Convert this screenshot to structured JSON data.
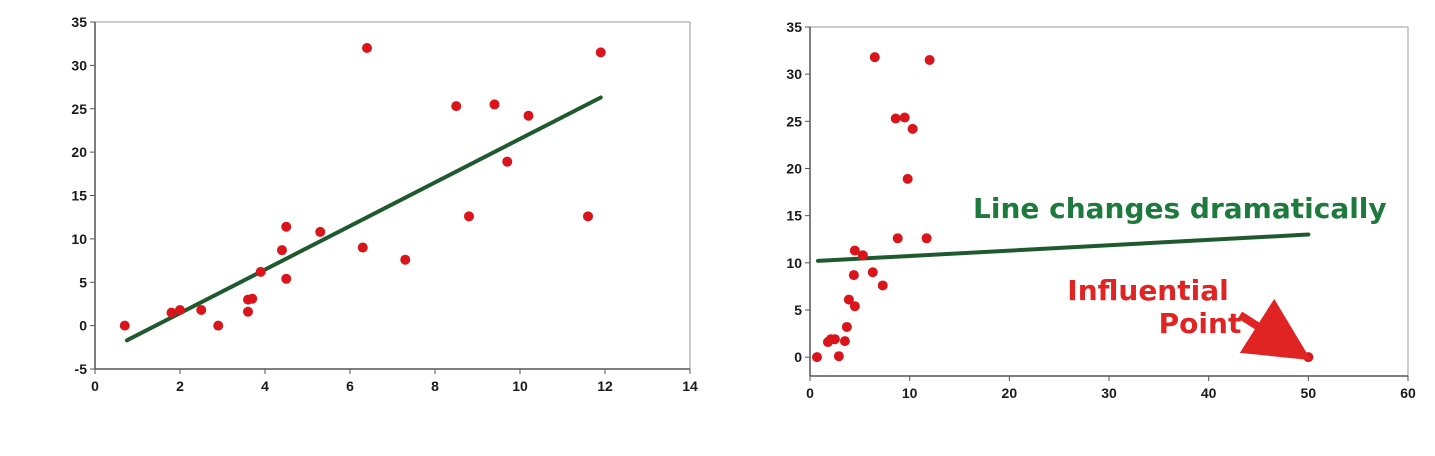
{
  "colors": {
    "point": "#d9141b",
    "line": "#1f5a2e",
    "axis": "#555555",
    "green_text": "#1e7a3c",
    "red_text": "#e02424"
  },
  "chart_data": [
    {
      "type": "scatter",
      "title": "",
      "xlabel": "",
      "ylabel": "",
      "xlim": [
        0,
        14
      ],
      "ylim": [
        -5,
        35
      ],
      "xticks": [
        0,
        2,
        4,
        6,
        8,
        10,
        12,
        14
      ],
      "yticks": [
        -5,
        0,
        5,
        10,
        15,
        20,
        25,
        30,
        35
      ],
      "grid": false,
      "points": [
        [
          0.7,
          0.0
        ],
        [
          1.8,
          1.5
        ],
        [
          2.0,
          1.8
        ],
        [
          2.5,
          1.8
        ],
        [
          2.9,
          0.0
        ],
        [
          3.6,
          1.6
        ],
        [
          3.6,
          3.0
        ],
        [
          3.7,
          3.1
        ],
        [
          3.9,
          6.2
        ],
        [
          4.4,
          8.7
        ],
        [
          4.5,
          11.4
        ],
        [
          4.5,
          5.4
        ],
        [
          5.3,
          10.8
        ],
        [
          6.3,
          9.0
        ],
        [
          6.4,
          32.0
        ],
        [
          7.3,
          7.6
        ],
        [
          8.5,
          25.3
        ],
        [
          8.8,
          12.6
        ],
        [
          9.4,
          25.5
        ],
        [
          9.7,
          18.9
        ],
        [
          10.2,
          24.2
        ],
        [
          11.6,
          12.6
        ],
        [
          11.9,
          31.5
        ]
      ],
      "trendline": [
        [
          0.75,
          -1.7
        ],
        [
          11.9,
          26.3
        ]
      ]
    },
    {
      "type": "scatter",
      "title": "",
      "xlabel": "",
      "ylabel": "",
      "xlim": [
        0,
        60
      ],
      "ylim": [
        -2,
        35
      ],
      "xticks": [
        0,
        10,
        20,
        30,
        40,
        50,
        60
      ],
      "yticks": [
        0,
        5,
        10,
        15,
        20,
        25,
        30,
        35
      ],
      "grid": false,
      "points": [
        [
          0.7,
          0.0
        ],
        [
          1.8,
          1.6
        ],
        [
          2.1,
          1.9
        ],
        [
          2.5,
          1.9
        ],
        [
          2.9,
          0.1
        ],
        [
          3.5,
          1.7
        ],
        [
          3.7,
          3.2
        ],
        [
          3.9,
          6.1
        ],
        [
          4.4,
          8.7
        ],
        [
          4.5,
          11.3
        ],
        [
          4.5,
          5.4
        ],
        [
          5.3,
          10.8
        ],
        [
          6.3,
          9.0
        ],
        [
          6.5,
          31.8
        ],
        [
          7.3,
          7.6
        ],
        [
          8.6,
          25.3
        ],
        [
          8.8,
          12.6
        ],
        [
          9.5,
          25.4
        ],
        [
          9.8,
          18.9
        ],
        [
          10.3,
          24.2
        ],
        [
          11.7,
          12.6
        ],
        [
          12.0,
          31.5
        ],
        [
          50.0,
          0.0
        ]
      ],
      "trendline": [
        [
          0.8,
          10.2
        ],
        [
          50.0,
          13.0
        ]
      ],
      "annotations": {
        "line_note": "Line changes dramatically",
        "influential_line1": "Influential",
        "influential_line2": "Point"
      }
    }
  ]
}
